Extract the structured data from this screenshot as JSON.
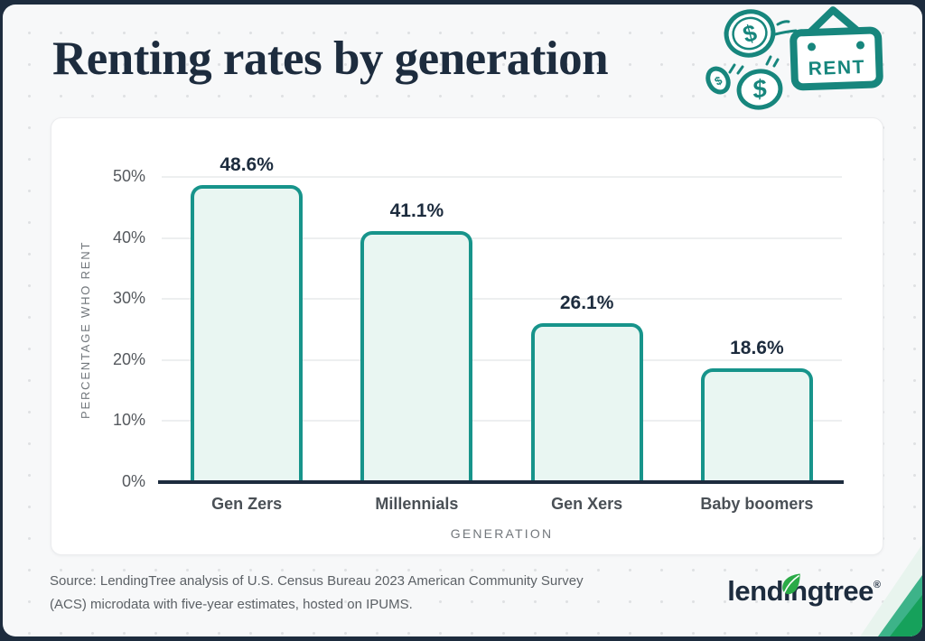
{
  "header": {
    "title": "Renting rates by generation"
  },
  "illustration": {
    "rent_label": "RENT",
    "coin_symbol": "$"
  },
  "chart_data": {
    "type": "bar",
    "title": "Renting rates by generation",
    "xlabel": "GENERATION",
    "ylabel": "PERCENTAGE WHO RENT",
    "categories": [
      "Gen Zers",
      "Millennials",
      "Gen Xers",
      "Baby boomers"
    ],
    "values": [
      48.6,
      41.1,
      26.1,
      18.6
    ],
    "value_labels": [
      "48.6%",
      "41.1%",
      "26.1%",
      "18.6%"
    ],
    "ylim": [
      0,
      50
    ],
    "yticks": [
      {
        "label": "0%",
        "value": 0
      },
      {
        "label": "10%",
        "value": 10
      },
      {
        "label": "20%",
        "value": 20
      },
      {
        "label": "30%",
        "value": 30
      },
      {
        "label": "40%",
        "value": 40
      },
      {
        "label": "50%",
        "value": 50
      }
    ],
    "grid": true,
    "legend": "none",
    "bar_fill": "#e9f6f2",
    "bar_stroke": "#17948b"
  },
  "footer": {
    "source": "Source: LendingTree analysis of U.S. Census Bureau 2023 American Community Survey (ACS) microdata with five-year estimates, hosted on IPUMS.",
    "brand": {
      "name": "lendingtree",
      "registered": "®"
    }
  },
  "colors": {
    "teal": "#17867d",
    "navy": "#1d2c3e",
    "leaf_green": "#2baa47",
    "bar_fill": "#e9f6f2",
    "bar_stroke": "#17948b",
    "ribbon_mint": "#e8f4ee",
    "ribbon_seafoam": "#3db389",
    "ribbon_green": "#16a15b"
  }
}
